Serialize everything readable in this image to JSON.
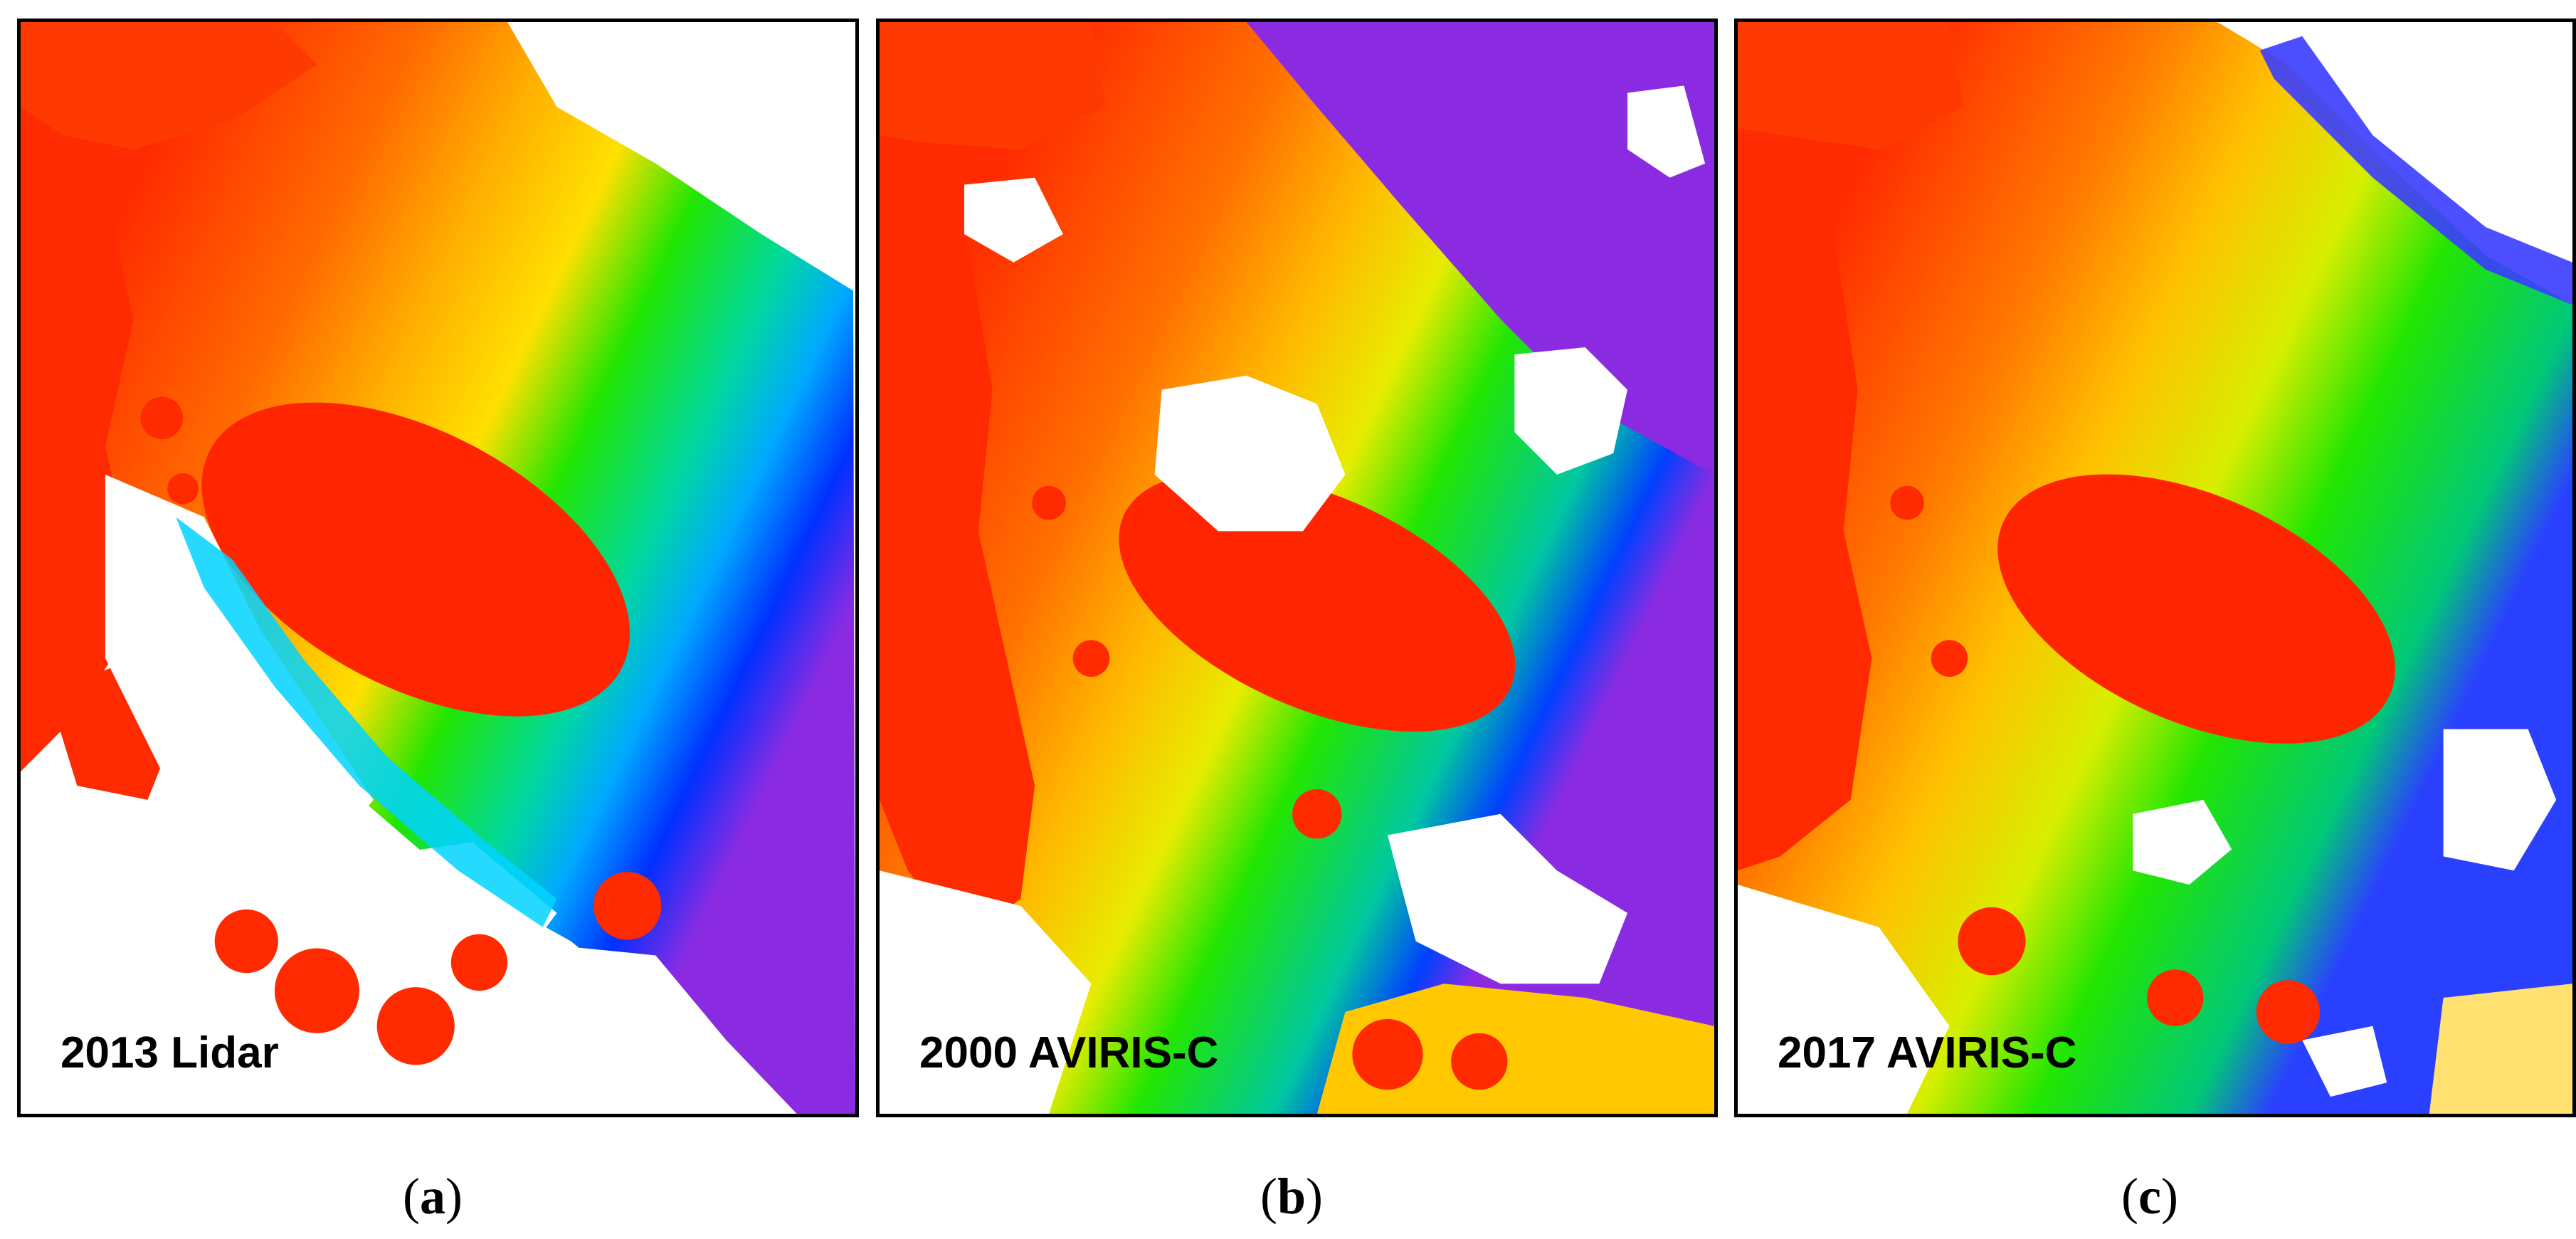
{
  "panels": [
    {
      "id": "a",
      "label": "2013 Lidar",
      "caption": "a"
    },
    {
      "id": "b",
      "label": "2000 AVIRIS-C",
      "caption": "b"
    },
    {
      "id": "c",
      "label": "2017 AVIRIS-C",
      "caption": "c"
    }
  ],
  "colors": {
    "shallow": "#ff2a00",
    "orange": "#ff8a00",
    "yellow": "#ffd800",
    "green": "#22e600",
    "cyan": "#00e0e8",
    "blue": "#0038ff",
    "deep": "#8a2be2",
    "nodata": "#ffffff"
  }
}
